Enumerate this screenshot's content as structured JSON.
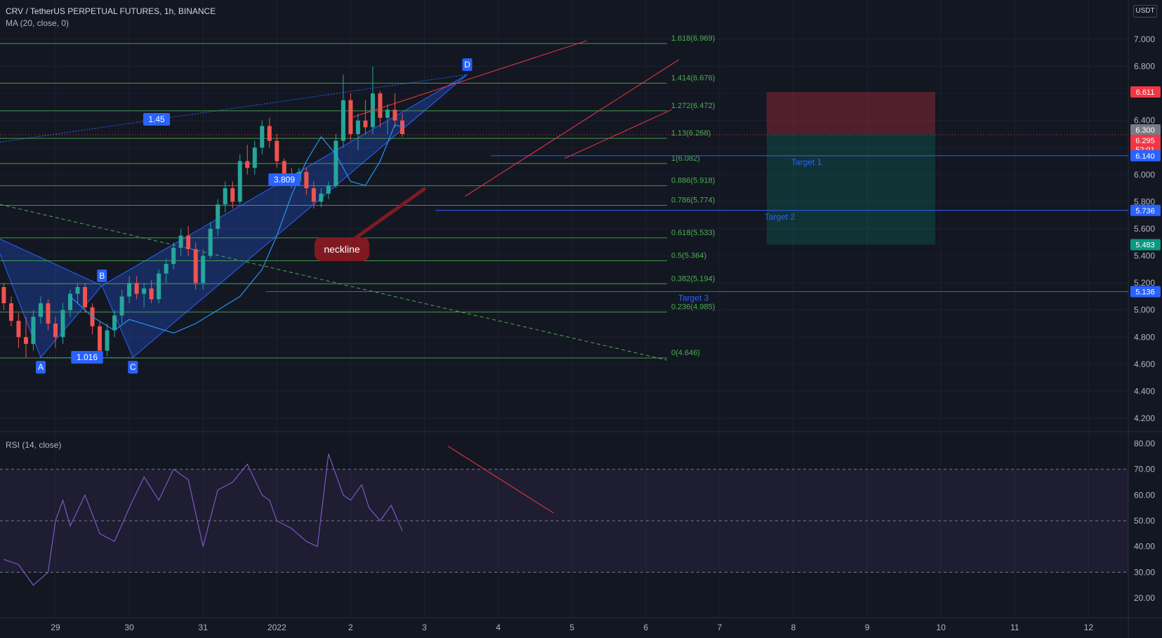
{
  "header": {
    "title": "CRV / TetherUS PERPETUAL FUTURES, 1h, BINANCE",
    "ma": "MA (20, close, 0)",
    "rsi": "RSI (14, close)",
    "currency": "USDT"
  },
  "colors": {
    "background": "#131722",
    "fib": "#4caf50",
    "up": "#26a69a",
    "down": "#ef5350",
    "ma": "#2196f3",
    "rsi": "#7e57c2",
    "trend": "#f23645",
    "target": "#2962ff"
  },
  "chart_data": [
    {
      "type": "line",
      "title": "CRV / TetherUS PERPETUAL FUTURES, 1h, BINANCE",
      "x_ticks": [
        "29",
        "30",
        "31",
        "2022",
        "2",
        "3",
        "4",
        "5",
        "6",
        "7",
        "8",
        "9",
        "10",
        "11",
        "12"
      ],
      "y_ticks": [
        "7.000",
        "6.800",
        "6.600",
        "6.400",
        "6.200",
        "6.000",
        "5.800",
        "5.600",
        "5.400",
        "5.200",
        "5.000",
        "4.800",
        "4.600",
        "4.400",
        "4.200"
      ],
      "ylim": [
        4.1,
        7.25
      ],
      "price_labels": [
        {
          "text": "6.611",
          "value": 6.611,
          "color": "#f23645"
        },
        {
          "text": "6.300",
          "value": 6.3,
          "color": "#787b86"
        },
        {
          "text": "6.295",
          "value": 6.295,
          "color": "#f23645"
        },
        {
          "text": "52:01",
          "value": 6.22,
          "color": "#f23645"
        },
        {
          "text": "6.140",
          "value": 6.14,
          "color": "#2962ff"
        },
        {
          "text": "5.736",
          "value": 5.736,
          "color": "#2962ff"
        },
        {
          "text": "5.483",
          "value": 5.483,
          "color": "#089981"
        },
        {
          "text": "5.136",
          "value": 5.136,
          "color": "#2962ff"
        }
      ],
      "fib_levels": [
        {
          "label": "1.618(6.969)",
          "value": 6.969
        },
        {
          "label": "1.414(6.676)",
          "value": 6.676
        },
        {
          "label": "1.272(6.472)",
          "value": 6.472
        },
        {
          "label": "1.13(6.268)",
          "value": 6.268
        },
        {
          "label": "1(6.082)",
          "value": 6.082
        },
        {
          "label": "0.886(5.918)",
          "value": 5.918
        },
        {
          "label": "0.786(5.774)",
          "value": 5.774
        },
        {
          "label": "0.618(5.533)",
          "value": 5.533
        },
        {
          "label": "0.5(5.364)",
          "value": 5.364
        },
        {
          "label": "0.382(5.194)",
          "value": 5.194
        },
        {
          "label": "0.236(4.985)",
          "value": 4.985
        },
        {
          "label": "0(4.646)",
          "value": 4.646
        }
      ],
      "targets": [
        {
          "label": "Target 1",
          "value": 6.14
        },
        {
          "label": "Target 2",
          "value": 5.736
        },
        {
          "label": "Target 3",
          "value": 5.136
        }
      ],
      "pattern_points": [
        {
          "label": "A",
          "value": 4.65
        },
        {
          "label": "B",
          "value": 5.18
        },
        {
          "label": "C",
          "value": 4.65
        },
        {
          "label": "D",
          "value": 6.74
        }
      ],
      "ratios": [
        "1.45",
        "3.809",
        "1.016"
      ],
      "annotation": "neckline",
      "position": {
        "entry": 6.3,
        "stop": 6.611,
        "target": 5.483
      },
      "series": [
        {
          "name": "MA (20, close, 0)",
          "x": [
            0.2,
            0.5,
            0.8,
            1.0,
            1.3,
            1.6,
            1.9,
            2.2,
            2.5,
            2.8,
            3.0,
            3.2,
            3.4,
            3.6,
            3.8,
            4.0,
            4.2,
            4.4,
            4.6,
            4.7
          ],
          "values": [
            5.1,
            4.95,
            4.85,
            4.93,
            4.88,
            4.83,
            4.9,
            5.0,
            5.1,
            5.3,
            5.55,
            5.85,
            6.1,
            6.28,
            6.15,
            5.95,
            5.92,
            6.1,
            6.37,
            6.35
          ]
        },
        {
          "name": "RSI (14, close)",
          "x": [
            -0.7,
            -0.5,
            -0.3,
            -0.1,
            0.0,
            0.1,
            0.2,
            0.4,
            0.6,
            0.8,
            1.0,
            1.2,
            1.4,
            1.6,
            1.8,
            2.0,
            2.2,
            2.4,
            2.6,
            2.8,
            2.9,
            3.0,
            3.2,
            3.4,
            3.55,
            3.7,
            3.9,
            4.0,
            4.15,
            4.25,
            4.4,
            4.55,
            4.7
          ],
          "values": [
            35,
            33,
            25,
            30,
            50,
            58,
            48,
            60,
            45,
            42,
            55,
            67,
            58,
            70,
            66,
            40,
            62,
            65,
            72,
            60,
            58,
            50,
            47,
            42,
            40,
            76,
            60,
            58,
            64,
            55,
            50,
            56,
            46
          ]
        }
      ],
      "candles": [
        {
          "x": -0.8,
          "open": 5.13,
          "high": 5.2,
          "low": 5.05,
          "close": 5.17
        },
        {
          "x": -0.7,
          "open": 5.17,
          "high": 5.2,
          "low": 5.0,
          "close": 5.05
        },
        {
          "x": -0.6,
          "open": 5.05,
          "high": 5.1,
          "low": 4.88,
          "close": 4.92
        },
        {
          "x": -0.5,
          "open": 4.92,
          "high": 4.98,
          "low": 4.72,
          "close": 4.8
        },
        {
          "x": -0.4,
          "open": 4.8,
          "high": 4.95,
          "low": 4.65,
          "close": 4.75
        },
        {
          "x": -0.3,
          "open": 4.75,
          "high": 5.0,
          "low": 4.7,
          "close": 4.95
        },
        {
          "x": -0.2,
          "open": 4.95,
          "high": 5.1,
          "low": 4.9,
          "close": 5.05
        },
        {
          "x": -0.1,
          "open": 5.05,
          "high": 5.08,
          "low": 4.85,
          "close": 4.9
        },
        {
          "x": 0.0,
          "open": 4.9,
          "high": 4.95,
          "low": 4.72,
          "close": 4.8
        },
        {
          "x": 0.1,
          "open": 4.8,
          "high": 5.05,
          "low": 4.75,
          "close": 5.0
        },
        {
          "x": 0.2,
          "open": 5.0,
          "high": 5.15,
          "low": 4.95,
          "close": 5.12
        },
        {
          "x": 0.3,
          "open": 5.12,
          "high": 5.2,
          "low": 5.05,
          "close": 5.17
        },
        {
          "x": 0.4,
          "open": 5.17,
          "high": 5.2,
          "low": 4.98,
          "close": 5.02
        },
        {
          "x": 0.5,
          "open": 5.02,
          "high": 5.05,
          "low": 4.82,
          "close": 4.88
        },
        {
          "x": 0.6,
          "open": 4.88,
          "high": 4.92,
          "low": 4.65,
          "close": 4.7
        },
        {
          "x": 0.7,
          "open": 4.7,
          "high": 4.9,
          "low": 4.66,
          "close": 4.85
        },
        {
          "x": 0.8,
          "open": 4.85,
          "high": 5.0,
          "low": 4.8,
          "close": 4.96
        },
        {
          "x": 0.9,
          "open": 4.96,
          "high": 5.15,
          "low": 4.9,
          "close": 5.1
        },
        {
          "x": 1.0,
          "open": 5.1,
          "high": 5.25,
          "low": 5.05,
          "close": 5.2
        },
        {
          "x": 1.1,
          "open": 5.2,
          "high": 5.25,
          "low": 5.08,
          "close": 5.12
        },
        {
          "x": 1.2,
          "open": 5.12,
          "high": 5.2,
          "low": 5.02,
          "close": 5.16
        },
        {
          "x": 1.3,
          "open": 5.16,
          "high": 5.22,
          "low": 5.05,
          "close": 5.08
        },
        {
          "x": 1.4,
          "open": 5.08,
          "high": 5.3,
          "low": 5.05,
          "close": 5.27
        },
        {
          "x": 1.5,
          "open": 5.27,
          "high": 5.38,
          "low": 5.2,
          "close": 5.34
        },
        {
          "x": 1.6,
          "open": 5.34,
          "high": 5.5,
          "low": 5.3,
          "close": 5.46
        },
        {
          "x": 1.7,
          "open": 5.46,
          "high": 5.6,
          "low": 5.4,
          "close": 5.55
        },
        {
          "x": 1.8,
          "open": 5.55,
          "high": 5.62,
          "low": 5.4,
          "close": 5.45
        },
        {
          "x": 1.9,
          "open": 5.45,
          "high": 5.5,
          "low": 5.15,
          "close": 5.2
        },
        {
          "x": 2.0,
          "open": 5.2,
          "high": 5.45,
          "low": 5.15,
          "close": 5.4
        },
        {
          "x": 2.1,
          "open": 5.4,
          "high": 5.65,
          "low": 5.38,
          "close": 5.6
        },
        {
          "x": 2.2,
          "open": 5.6,
          "high": 5.82,
          "low": 5.55,
          "close": 5.78
        },
        {
          "x": 2.3,
          "open": 5.78,
          "high": 5.95,
          "low": 5.72,
          "close": 5.9
        },
        {
          "x": 2.4,
          "open": 5.9,
          "high": 5.95,
          "low": 5.75,
          "close": 5.8
        },
        {
          "x": 2.5,
          "open": 5.8,
          "high": 6.15,
          "low": 5.78,
          "close": 6.1
        },
        {
          "x": 2.6,
          "open": 6.1,
          "high": 6.22,
          "low": 6.0,
          "close": 6.05
        },
        {
          "x": 2.7,
          "open": 6.05,
          "high": 6.25,
          "low": 6.0,
          "close": 6.2
        },
        {
          "x": 2.8,
          "open": 6.2,
          "high": 6.4,
          "low": 6.15,
          "close": 6.36
        },
        {
          "x": 2.9,
          "open": 6.36,
          "high": 6.42,
          "low": 6.2,
          "close": 6.25
        },
        {
          "x": 3.0,
          "open": 6.25,
          "high": 6.3,
          "low": 6.05,
          "close": 6.1
        },
        {
          "x": 3.1,
          "open": 6.1,
          "high": 6.12,
          "low": 5.95,
          "close": 6.0
        },
        {
          "x": 3.2,
          "open": 6.0,
          "high": 6.05,
          "low": 5.9,
          "close": 5.95
        },
        {
          "x": 3.3,
          "open": 5.95,
          "high": 6.05,
          "low": 5.92,
          "close": 6.02
        },
        {
          "x": 3.4,
          "open": 6.02,
          "high": 6.05,
          "low": 5.85,
          "close": 5.9
        },
        {
          "x": 3.5,
          "open": 5.9,
          "high": 5.95,
          "low": 5.75,
          "close": 5.8
        },
        {
          "x": 3.6,
          "open": 5.8,
          "high": 5.9,
          "low": 5.76,
          "close": 5.86
        },
        {
          "x": 3.7,
          "open": 5.86,
          "high": 5.95,
          "low": 5.82,
          "close": 5.92
        },
        {
          "x": 3.8,
          "open": 5.92,
          "high": 6.3,
          "low": 5.9,
          "close": 6.25
        },
        {
          "x": 3.9,
          "open": 6.25,
          "high": 6.74,
          "low": 6.2,
          "close": 6.55
        },
        {
          "x": 4.0,
          "open": 6.55,
          "high": 6.6,
          "low": 6.25,
          "close": 6.3
        },
        {
          "x": 4.1,
          "open": 6.3,
          "high": 6.45,
          "low": 6.18,
          "close": 6.4
        },
        {
          "x": 4.2,
          "open": 6.4,
          "high": 6.55,
          "low": 6.3,
          "close": 6.35
        },
        {
          "x": 4.3,
          "open": 6.35,
          "high": 6.8,
          "low": 6.3,
          "close": 6.6
        },
        {
          "x": 4.4,
          "open": 6.6,
          "high": 6.62,
          "low": 6.35,
          "close": 6.42
        },
        {
          "x": 4.5,
          "open": 6.42,
          "high": 6.52,
          "low": 6.3,
          "close": 6.48
        },
        {
          "x": 4.6,
          "open": 6.48,
          "high": 6.6,
          "low": 6.35,
          "close": 6.4
        },
        {
          "x": 4.7,
          "open": 6.4,
          "high": 6.45,
          "low": 6.28,
          "close": 6.3
        }
      ]
    },
    {
      "type": "line",
      "title": "RSI (14, close)",
      "y_ticks": [
        "80.00",
        "70.00",
        "60.00",
        "50.00",
        "40.00",
        "30.00",
        "20.00"
      ],
      "ylim": [
        15,
        85
      ],
      "levels": [
        70,
        50,
        30
      ]
    }
  ]
}
